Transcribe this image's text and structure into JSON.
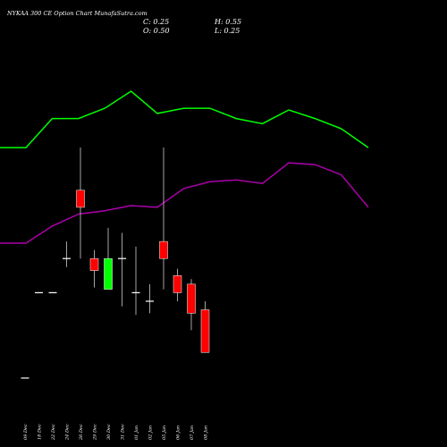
{
  "chart_data": {
    "type": "candlestick",
    "title": "NYKAA 300  CE Option  Chart MunafaSutra.com",
    "ohlc_readout": {
      "close_label": "C: 0.25",
      "open_label": "O: 0.50",
      "high_label": "H: 0.55",
      "low_label": "L: 0.25"
    },
    "categories": [
      "09 Dec",
      "18 Dec",
      "22 Dec",
      "24 Dec",
      "26 Dec",
      "29 Dec",
      "30 Dec",
      "31 Dec",
      "01 Jan",
      "02 Jan",
      "05 Jan",
      "06 Jan",
      "07 Jan",
      "08 Jan"
    ],
    "candles": [
      {
        "open": 0.1,
        "high": 0.1,
        "low": 0.1,
        "close": 0.1,
        "color": "#ffffff"
      },
      {
        "open": 0.6,
        "high": 0.6,
        "low": 0.6,
        "close": 0.6,
        "color": "#ffffff"
      },
      {
        "open": 0.6,
        "high": 0.6,
        "low": 0.6,
        "close": 0.6,
        "color": "#ffffff"
      },
      {
        "open": 0.8,
        "high": 0.9,
        "low": 0.75,
        "close": 0.8,
        "color": "#ffffff"
      },
      {
        "open": 1.2,
        "high": 1.45,
        "low": 0.8,
        "close": 1.1,
        "color": "#ff0000"
      },
      {
        "open": 0.8,
        "high": 0.85,
        "low": 0.63,
        "close": 0.73,
        "color": "#ff0000"
      },
      {
        "open": 0.62,
        "high": 0.98,
        "low": 0.62,
        "close": 0.8,
        "color": "#00ff00"
      },
      {
        "open": 0.8,
        "high": 0.95,
        "low": 0.52,
        "close": 0.8,
        "color": "#ffffff"
      },
      {
        "open": 0.6,
        "high": 0.87,
        "low": 0.47,
        "close": 0.6,
        "color": "#ffffff"
      },
      {
        "open": 0.55,
        "high": 0.65,
        "low": 0.48,
        "close": 0.55,
        "color": "#ffffff"
      },
      {
        "open": 0.9,
        "high": 1.45,
        "low": 0.62,
        "close": 0.8,
        "color": "#ff0000"
      },
      {
        "open": 0.7,
        "high": 0.74,
        "low": 0.55,
        "close": 0.6,
        "color": "#ff0000"
      },
      {
        "open": 0.65,
        "high": 0.68,
        "low": 0.38,
        "close": 0.48,
        "color": "#ff0000"
      },
      {
        "open": 0.5,
        "high": 0.55,
        "low": 0.25,
        "close": 0.25,
        "color": "#ff0000"
      }
    ],
    "upper_band": [
      1.45,
      1.45,
      1.62,
      1.62,
      1.68,
      1.78,
      1.65,
      1.68,
      1.68,
      1.62,
      1.59,
      1.67,
      1.62,
      1.56,
      1.45
    ],
    "lower_band": [
      0.89,
      0.89,
      0.99,
      1.06,
      1.08,
      1.11,
      1.1,
      1.21,
      1.25,
      1.26,
      1.24,
      1.36,
      1.35,
      1.29,
      1.1
    ],
    "upper_band_color": "#00ff00",
    "lower_band_color": "#aa00aa",
    "ylim": [
      0,
      2.0
    ],
    "grid": false,
    "background": "#000000"
  }
}
